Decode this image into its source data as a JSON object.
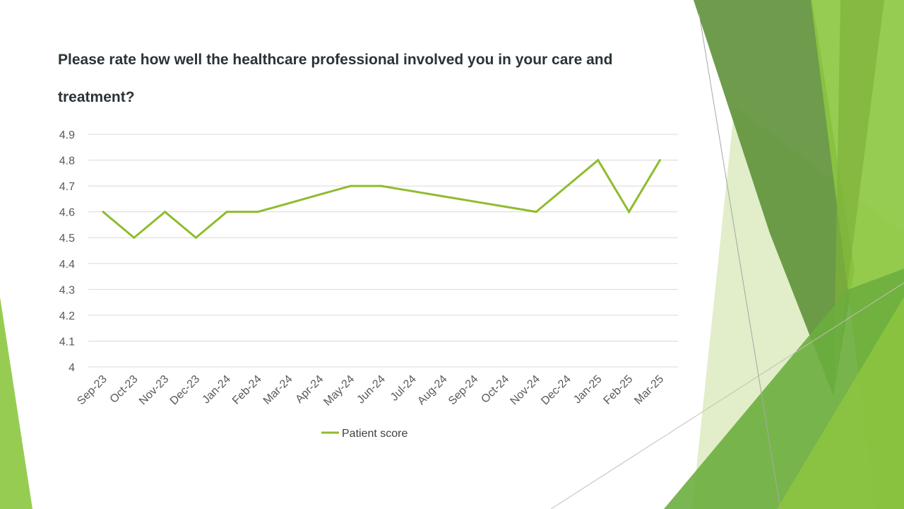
{
  "slide": {
    "title": "Please rate how well the healthcare professional involved you in your care and treatment?"
  },
  "colors": {
    "series_line": "#8fbc2e",
    "gridline": "#d9d9d9",
    "axis_text": "#595959",
    "title_text": "#2b3338",
    "decor_dark_green": "#5e9138",
    "decor_light_green": "#8cc63f",
    "decor_pale_green": "#dcebc0"
  },
  "chart_data": {
    "type": "line",
    "title": "Please rate how well the healthcare professional involved you in your care and treatment?",
    "categories": [
      "Sep-23",
      "Oct-23",
      "Nov-23",
      "Dec-23",
      "Jan-24",
      "Feb-24",
      "Mar-24",
      "Apr-24",
      "May-24",
      "Jun-24",
      "Jul-24",
      "Aug-24",
      "Sep-24",
      "Oct-24",
      "Nov-24",
      "Dec-24",
      "Jan-25",
      "Feb-25",
      "Mar-25"
    ],
    "series": [
      {
        "name": "Patient score",
        "values": [
          4.6,
          4.5,
          4.6,
          4.5,
          4.6,
          4.6,
          4.633,
          4.667,
          4.7,
          4.7,
          4.68,
          4.66,
          4.64,
          4.62,
          4.6,
          4.7,
          4.8,
          4.6,
          4.8
        ]
      }
    ],
    "ylim": [
      4,
      4.9
    ],
    "yticks": [
      "4",
      "4.1",
      "4.2",
      "4.3",
      "4.4",
      "4.5",
      "4.6",
      "4.7",
      "4.8",
      "4.9"
    ],
    "xlabel": "",
    "ylabel": "",
    "grid": true,
    "legend_position": "bottom"
  }
}
